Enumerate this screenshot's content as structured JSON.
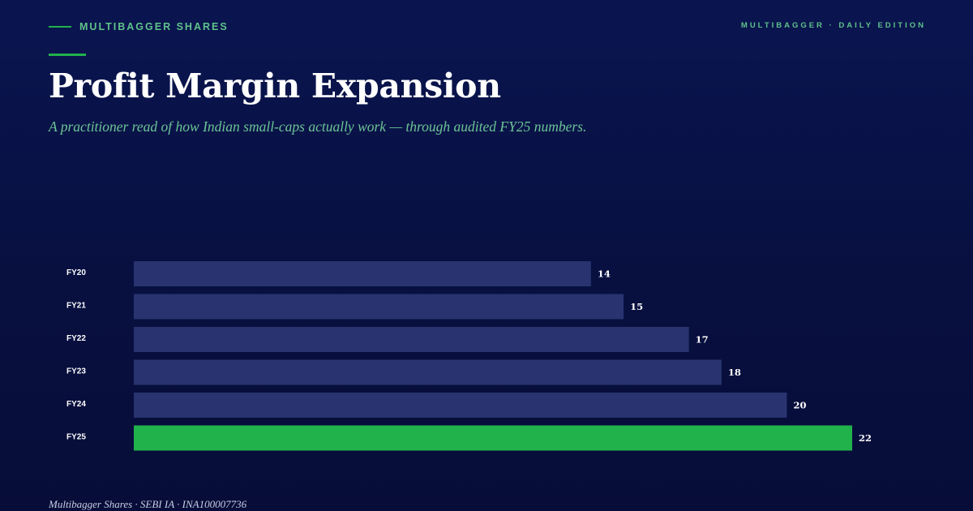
{
  "header": {
    "brand": "MULTIBAGGER SHARES",
    "edition": "MULTIBAGGER · DAILY EDITION",
    "title": "Profit Margin Expansion",
    "subtitle": "A practitioner read of how Indian small-caps actually work — through audited FY25 numbers."
  },
  "footer": {
    "text": "Multibagger Shares · SEBI IA · INA100007736"
  },
  "colors": {
    "background": "#081040",
    "bar_default": "#283370",
    "bar_highlight": "#22b24c",
    "accent": "#22b24c"
  },
  "chart_data": {
    "type": "bar",
    "orientation": "horizontal",
    "categories": [
      "FY20",
      "FY21",
      "FY22",
      "FY23",
      "FY24",
      "FY25"
    ],
    "values": [
      14,
      15,
      17,
      18,
      20,
      22
    ],
    "value_labels": [
      "14",
      "15",
      "17",
      "18",
      "20",
      "22"
    ],
    "highlight_category": "FY25",
    "xlim": [
      0,
      22
    ],
    "grid": false,
    "legend": "none"
  }
}
